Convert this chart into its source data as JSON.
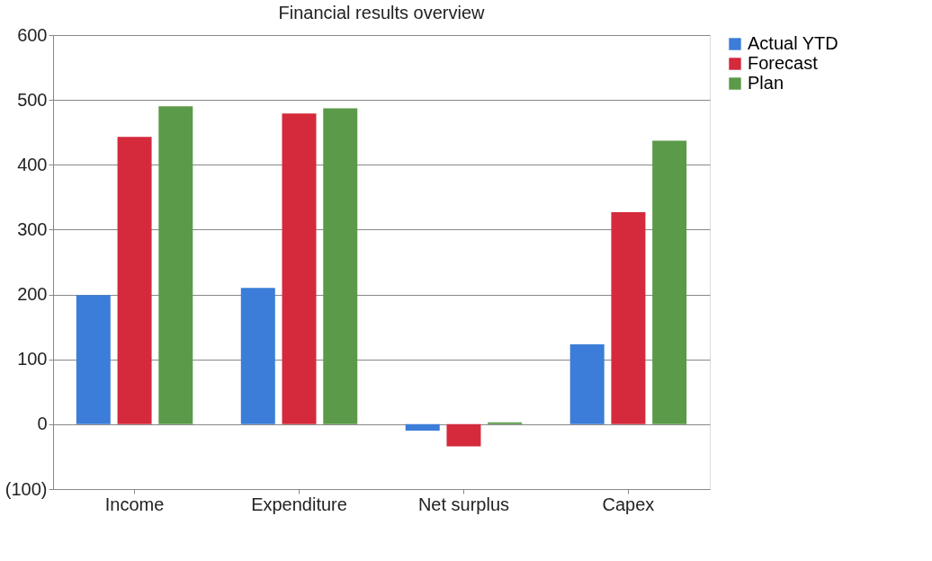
{
  "chart_data": {
    "type": "bar",
    "title": "Financial results overview",
    "categories": [
      "Income",
      "Expenditure",
      "Net surplus",
      "Capex"
    ],
    "series": [
      {
        "name": "Actual YTD",
        "color": "#3b7dd8",
        "values": [
          199,
          210,
          -10,
          123
        ]
      },
      {
        "name": "Forecast",
        "color": "#d42a3c",
        "values": [
          443,
          479,
          -34,
          327
        ]
      },
      {
        "name": "Plan",
        "color": "#5b9a48",
        "values": [
          490,
          487,
          3,
          437
        ]
      }
    ],
    "ylim": [
      -100,
      600
    ],
    "yticks": [
      {
        "value": -100,
        "label": "(100)"
      },
      0,
      100,
      200,
      300,
      400,
      500,
      600
    ],
    "grid": "y",
    "legend": "right"
  }
}
